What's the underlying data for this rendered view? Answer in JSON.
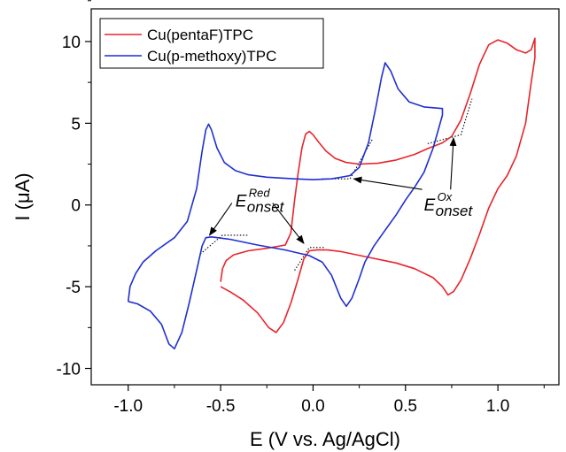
{
  "chart_data": {
    "type": "line",
    "xlabel": "E (V vs. Ag/AgCl)",
    "ylabel": "I (μA)",
    "xlim": [
      -1.2,
      1.33
    ],
    "ylim": [
      -11,
      12
    ],
    "xticks": [
      -1.0,
      -0.5,
      0.0,
      0.5,
      1.0
    ],
    "xtick_labels": [
      "-1.0",
      "-0.5",
      "0.0",
      "0.5",
      "1.0"
    ],
    "yticks": [
      -10,
      -5,
      0,
      5,
      10
    ],
    "ytick_labels": [
      "-10",
      "-5",
      "0",
      "5",
      "10"
    ],
    "legend_position": "top-left",
    "series": [
      {
        "name": "Cu(pentaF)TPC",
        "color": "#e8242b",
        "points": [
          [
            -0.5,
            -4.7
          ],
          [
            -0.49,
            -3.9
          ],
          [
            -0.47,
            -3.4
          ],
          [
            -0.43,
            -3.05
          ],
          [
            -0.35,
            -2.8
          ],
          [
            -0.25,
            -2.65
          ],
          [
            -0.15,
            -2.45
          ],
          [
            -0.12,
            -1.7
          ],
          [
            -0.1,
            0.3
          ],
          [
            -0.08,
            2.0
          ],
          [
            -0.06,
            3.5
          ],
          [
            -0.04,
            4.35
          ],
          [
            -0.02,
            4.5
          ],
          [
            0.0,
            4.3
          ],
          [
            0.03,
            3.85
          ],
          [
            0.07,
            3.3
          ],
          [
            0.12,
            2.85
          ],
          [
            0.18,
            2.6
          ],
          [
            0.25,
            2.5
          ],
          [
            0.35,
            2.55
          ],
          [
            0.45,
            2.75
          ],
          [
            0.55,
            3.1
          ],
          [
            0.62,
            3.45
          ],
          [
            0.7,
            3.8
          ],
          [
            0.75,
            4.2
          ],
          [
            0.8,
            5.2
          ],
          [
            0.85,
            6.8
          ],
          [
            0.9,
            8.6
          ],
          [
            0.95,
            9.8
          ],
          [
            1.0,
            10.1
          ],
          [
            1.05,
            9.9
          ],
          [
            1.1,
            9.5
          ],
          [
            1.15,
            9.3
          ],
          [
            1.18,
            9.5
          ],
          [
            1.2,
            10.2
          ],
          [
            1.2,
            9.0
          ],
          [
            1.18,
            7.5
          ],
          [
            1.15,
            5.0
          ],
          [
            1.1,
            3.0
          ],
          [
            1.05,
            1.8
          ],
          [
            1.0,
            1.0
          ],
          [
            0.95,
            -0.2
          ],
          [
            0.9,
            -1.8
          ],
          [
            0.85,
            -3.3
          ],
          [
            0.8,
            -4.6
          ],
          [
            0.76,
            -5.3
          ],
          [
            0.73,
            -5.5
          ],
          [
            0.7,
            -5.0
          ],
          [
            0.65,
            -4.45
          ],
          [
            0.55,
            -3.9
          ],
          [
            0.45,
            -3.55
          ],
          [
            0.3,
            -3.2
          ],
          [
            0.15,
            -2.85
          ],
          [
            0.08,
            -2.75
          ],
          [
            0.02,
            -2.75
          ],
          [
            -0.02,
            -2.8
          ],
          [
            -0.05,
            -3.3
          ],
          [
            -0.08,
            -4.5
          ],
          [
            -0.12,
            -6.0
          ],
          [
            -0.16,
            -7.2
          ],
          [
            -0.2,
            -7.8
          ],
          [
            -0.24,
            -7.5
          ],
          [
            -0.3,
            -6.6
          ],
          [
            -0.38,
            -5.8
          ],
          [
            -0.45,
            -5.3
          ],
          [
            -0.5,
            -5.0
          ]
        ]
      },
      {
        "name": "Cu(p-methoxy)TPC",
        "color": "#1f2fd0",
        "points": [
          [
            -1.0,
            -5.9
          ],
          [
            -0.99,
            -5.0
          ],
          [
            -0.96,
            -4.2
          ],
          [
            -0.92,
            -3.5
          ],
          [
            -0.85,
            -2.8
          ],
          [
            -0.75,
            -2.0
          ],
          [
            -0.68,
            -1.0
          ],
          [
            -0.63,
            1.0
          ],
          [
            -0.6,
            3.3
          ],
          [
            -0.58,
            4.6
          ],
          [
            -0.565,
            4.95
          ],
          [
            -0.55,
            4.6
          ],
          [
            -0.52,
            3.5
          ],
          [
            -0.48,
            2.6
          ],
          [
            -0.42,
            2.1
          ],
          [
            -0.35,
            1.85
          ],
          [
            -0.25,
            1.7
          ],
          [
            -0.1,
            1.6
          ],
          [
            0.0,
            1.55
          ],
          [
            0.1,
            1.6
          ],
          [
            0.2,
            1.8
          ],
          [
            0.25,
            2.3
          ],
          [
            0.3,
            3.8
          ],
          [
            0.34,
            6.0
          ],
          [
            0.37,
            7.8
          ],
          [
            0.39,
            8.7
          ],
          [
            0.42,
            8.2
          ],
          [
            0.46,
            7.1
          ],
          [
            0.52,
            6.3
          ],
          [
            0.6,
            6.0
          ],
          [
            0.7,
            5.9
          ],
          [
            0.7,
            5.5
          ],
          [
            0.65,
            3.5
          ],
          [
            0.6,
            2.0
          ],
          [
            0.55,
            1.1
          ],
          [
            0.5,
            0.3
          ],
          [
            0.45,
            -0.6
          ],
          [
            0.38,
            -1.7
          ],
          [
            0.33,
            -2.5
          ],
          [
            0.28,
            -3.5
          ],
          [
            0.25,
            -4.5
          ],
          [
            0.21,
            -5.7
          ],
          [
            0.18,
            -6.2
          ],
          [
            0.15,
            -5.7
          ],
          [
            0.1,
            -4.3
          ],
          [
            0.05,
            -3.5
          ],
          [
            -0.02,
            -3.1
          ],
          [
            -0.15,
            -2.75
          ],
          [
            -0.3,
            -2.45
          ],
          [
            -0.45,
            -2.1
          ],
          [
            -0.55,
            -1.95
          ],
          [
            -0.58,
            -2.0
          ],
          [
            -0.6,
            -2.5
          ],
          [
            -0.63,
            -4.0
          ],
          [
            -0.67,
            -6.0
          ],
          [
            -0.71,
            -7.8
          ],
          [
            -0.75,
            -8.8
          ],
          [
            -0.78,
            -8.5
          ],
          [
            -0.82,
            -7.3
          ],
          [
            -0.88,
            -6.5
          ],
          [
            -0.95,
            -6.05
          ],
          [
            -1.0,
            -5.9
          ]
        ]
      }
    ],
    "annotations": [
      {
        "name": "E-red-onset",
        "text_main": "E",
        "text_sub": "onset",
        "text_sup": "Red",
        "label_at": [
          -0.42,
          -0.1
        ],
        "arrows_to": [
          [
            -0.56,
            -1.85
          ],
          [
            -0.05,
            -2.35
          ]
        ]
      },
      {
        "name": "E-ox-onset",
        "text_main": "E",
        "text_sub": "onset",
        "text_sup": "Ox",
        "label_at": [
          0.6,
          -0.35
        ],
        "arrows_to": [
          [
            0.22,
            1.6
          ],
          [
            0.76,
            4.1
          ]
        ]
      }
    ],
    "onset_guides": [
      [
        [
          -0.61,
          -3.0
        ],
        [
          -0.49,
          -1.85
        ],
        [
          -0.35,
          -1.85
        ]
      ],
      [
        [
          -0.1,
          -4.0
        ],
        [
          -0.02,
          -2.6
        ],
        [
          0.06,
          -2.6
        ]
      ],
      [
        [
          0.05,
          1.6
        ],
        [
          0.2,
          1.6
        ],
        [
          0.32,
          4.0
        ]
      ],
      [
        [
          0.62,
          3.75
        ],
        [
          0.8,
          4.3
        ],
        [
          0.86,
          6.5
        ]
      ]
    ]
  }
}
